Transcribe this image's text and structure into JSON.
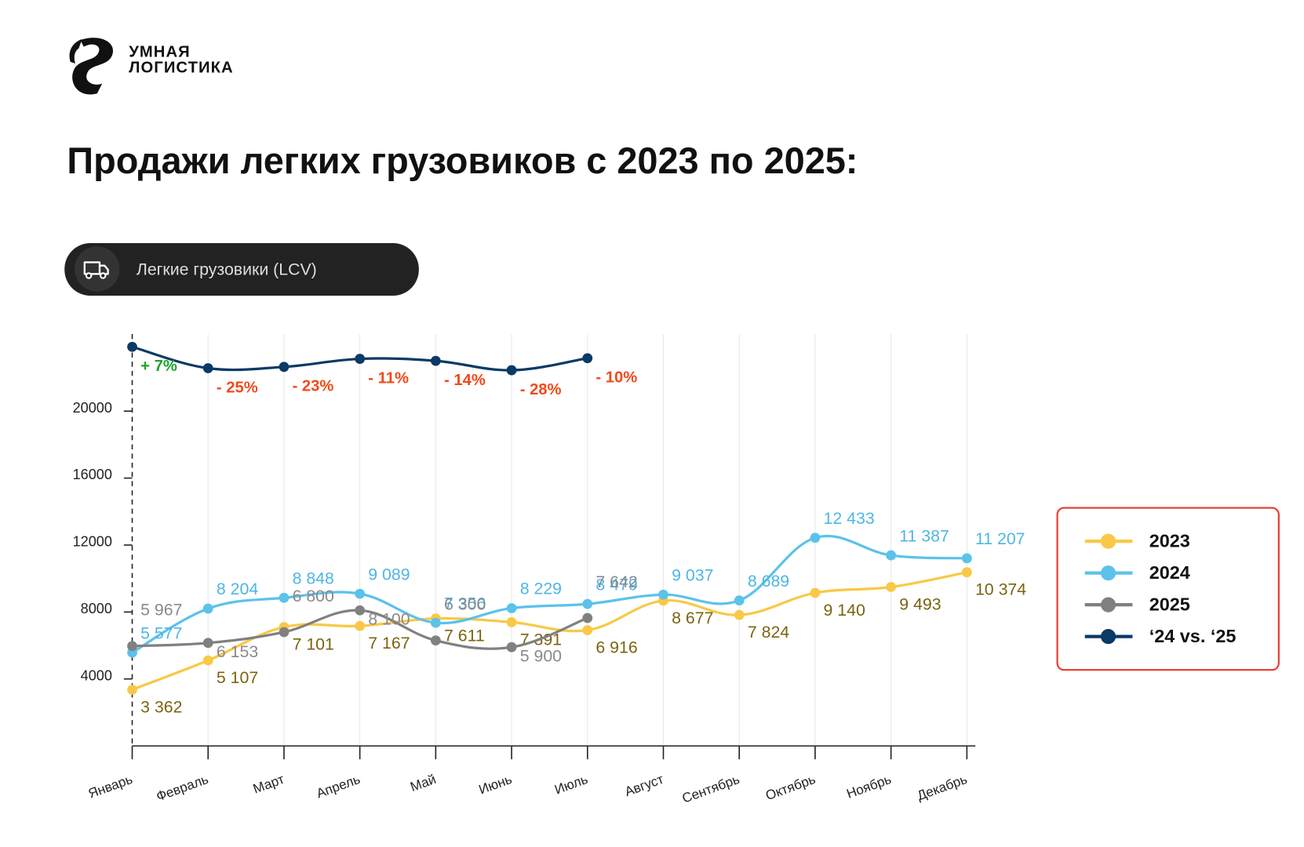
{
  "brand": [
    "УМНАЯ",
    "ЛОГИСТИКА"
  ],
  "filter_label": "Легкие грузовики (LCV)",
  "chart_data": {
    "type": "line",
    "title": "Продажи легких грузовиков с 2023 по 2025:",
    "categories": [
      "Январь",
      "Февраль",
      "Март",
      "Апрель",
      "Май",
      "Июнь",
      "Июль",
      "Август",
      "Сентябрь",
      "Октябрь",
      "Ноябрь",
      "Декабрь"
    ],
    "ylim": [
      0,
      24600
    ],
    "yticks": [
      4000,
      8000,
      12000,
      16000,
      20000
    ],
    "y2lim": [
      -590,
      26
    ],
    "grid": true,
    "legend": "right",
    "series": [
      {
        "name": "2023",
        "color": "#f9c846",
        "label_color": "#7a6410",
        "values": [
          3362,
          5107,
          7101,
          7167,
          7611,
          7391,
          6916,
          8677,
          7824,
          9140,
          9493,
          10374
        ],
        "value_labels": [
          "3 362",
          "5 107",
          "7 101",
          "7 167",
          "7 611",
          "7 391",
          "6 916",
          "8 677",
          "7 824",
          "9 140",
          "9 493",
          "10 374"
        ]
      },
      {
        "name": "2024",
        "color": "#5bc2ea",
        "label_color": "#4fb6e3",
        "values": [
          5577,
          8204,
          8848,
          9089,
          7356,
          8229,
          8479,
          9037,
          8689,
          12433,
          11387,
          11207
        ],
        "value_labels": [
          "5 577",
          "8 204",
          "8 848",
          "9 089",
          "7 356",
          "8 229",
          "8 479",
          "9 037",
          "8 689",
          "12 433",
          "11 387",
          "11 207"
        ]
      },
      {
        "name": "2025",
        "color": "#808080",
        "label_color": "#8a8a8a",
        "values": [
          5967,
          6153,
          6800,
          8100,
          6300,
          5900,
          7642,
          null,
          null,
          null,
          null,
          null
        ],
        "value_labels": [
          "5 967",
          "6 153",
          "6 800",
          "8 100",
          "6 300",
          "5 900",
          "7 642",
          null,
          null,
          null,
          null,
          null
        ]
      },
      {
        "name": "‘24 vs. ‘25",
        "color": "#0a3a66",
        "axis": "y2",
        "positive_color": "#1aa52a",
        "negative_color": "#f04a1a",
        "values": [
          7,
          -25,
          -23,
          -11,
          -14,
          -28,
          -10,
          null,
          null,
          null,
          null,
          null
        ],
        "value_labels": [
          "+ 7%",
          "- 25%",
          "- 23%",
          "- 11%",
          "- 14%",
          "- 28%",
          "- 10%",
          null,
          null,
          null,
          null,
          null
        ]
      }
    ]
  }
}
